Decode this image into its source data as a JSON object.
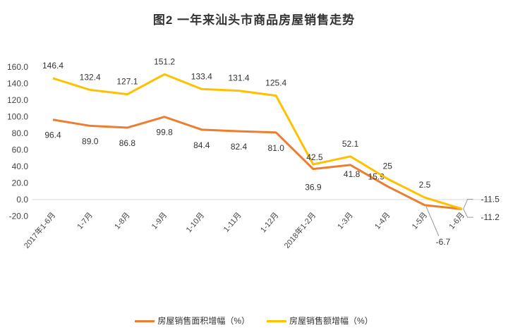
{
  "chart_data": {
    "type": "line",
    "title": "图2   一年来汕头市商品房屋销售走势",
    "categories": [
      "2017年1-6月",
      "1-7月",
      "1-8月",
      "1-9月",
      "1-10月",
      "1-11月",
      "1-12月",
      "2018年1-2月",
      "1-3月",
      "1-4月",
      "1-5月",
      "1-6月"
    ],
    "ylim": [
      -20,
      160
    ],
    "yticks": [
      "-20.0",
      "0.0",
      "20.0",
      "40.0",
      "60.0",
      "80.0",
      "100.0",
      "120.0",
      "140.0",
      "160.0"
    ],
    "series": [
      {
        "name": "房屋销售面积增幅（%）",
        "color": "#ED7D31",
        "values": [
          96.4,
          89.0,
          86.8,
          99.8,
          84.4,
          82.4,
          81.0,
          36.9,
          41.8,
          15.9,
          -6.7,
          -11.5
        ],
        "labels": [
          "96.4",
          "89.0",
          "86.8",
          "99.8",
          "84.4",
          "82.4",
          "81.0",
          "36.9",
          "41.8",
          "15.9",
          "-6.7",
          "-11.5"
        ]
      },
      {
        "name": "房屋销售额增幅（%）",
        "color": "#FFC000",
        "values": [
          146.4,
          132.4,
          127.1,
          151.2,
          133.4,
          131.4,
          125.4,
          42.5,
          52.1,
          25,
          2.5,
          -11.2
        ],
        "labels": [
          "146.4",
          "132.4",
          "127.1",
          "151.2",
          "133.4",
          "131.4",
          "125.4",
          "42.5",
          "52.1",
          "25",
          "2.5",
          "-11.2"
        ]
      }
    ],
    "legend": "bottom"
  }
}
